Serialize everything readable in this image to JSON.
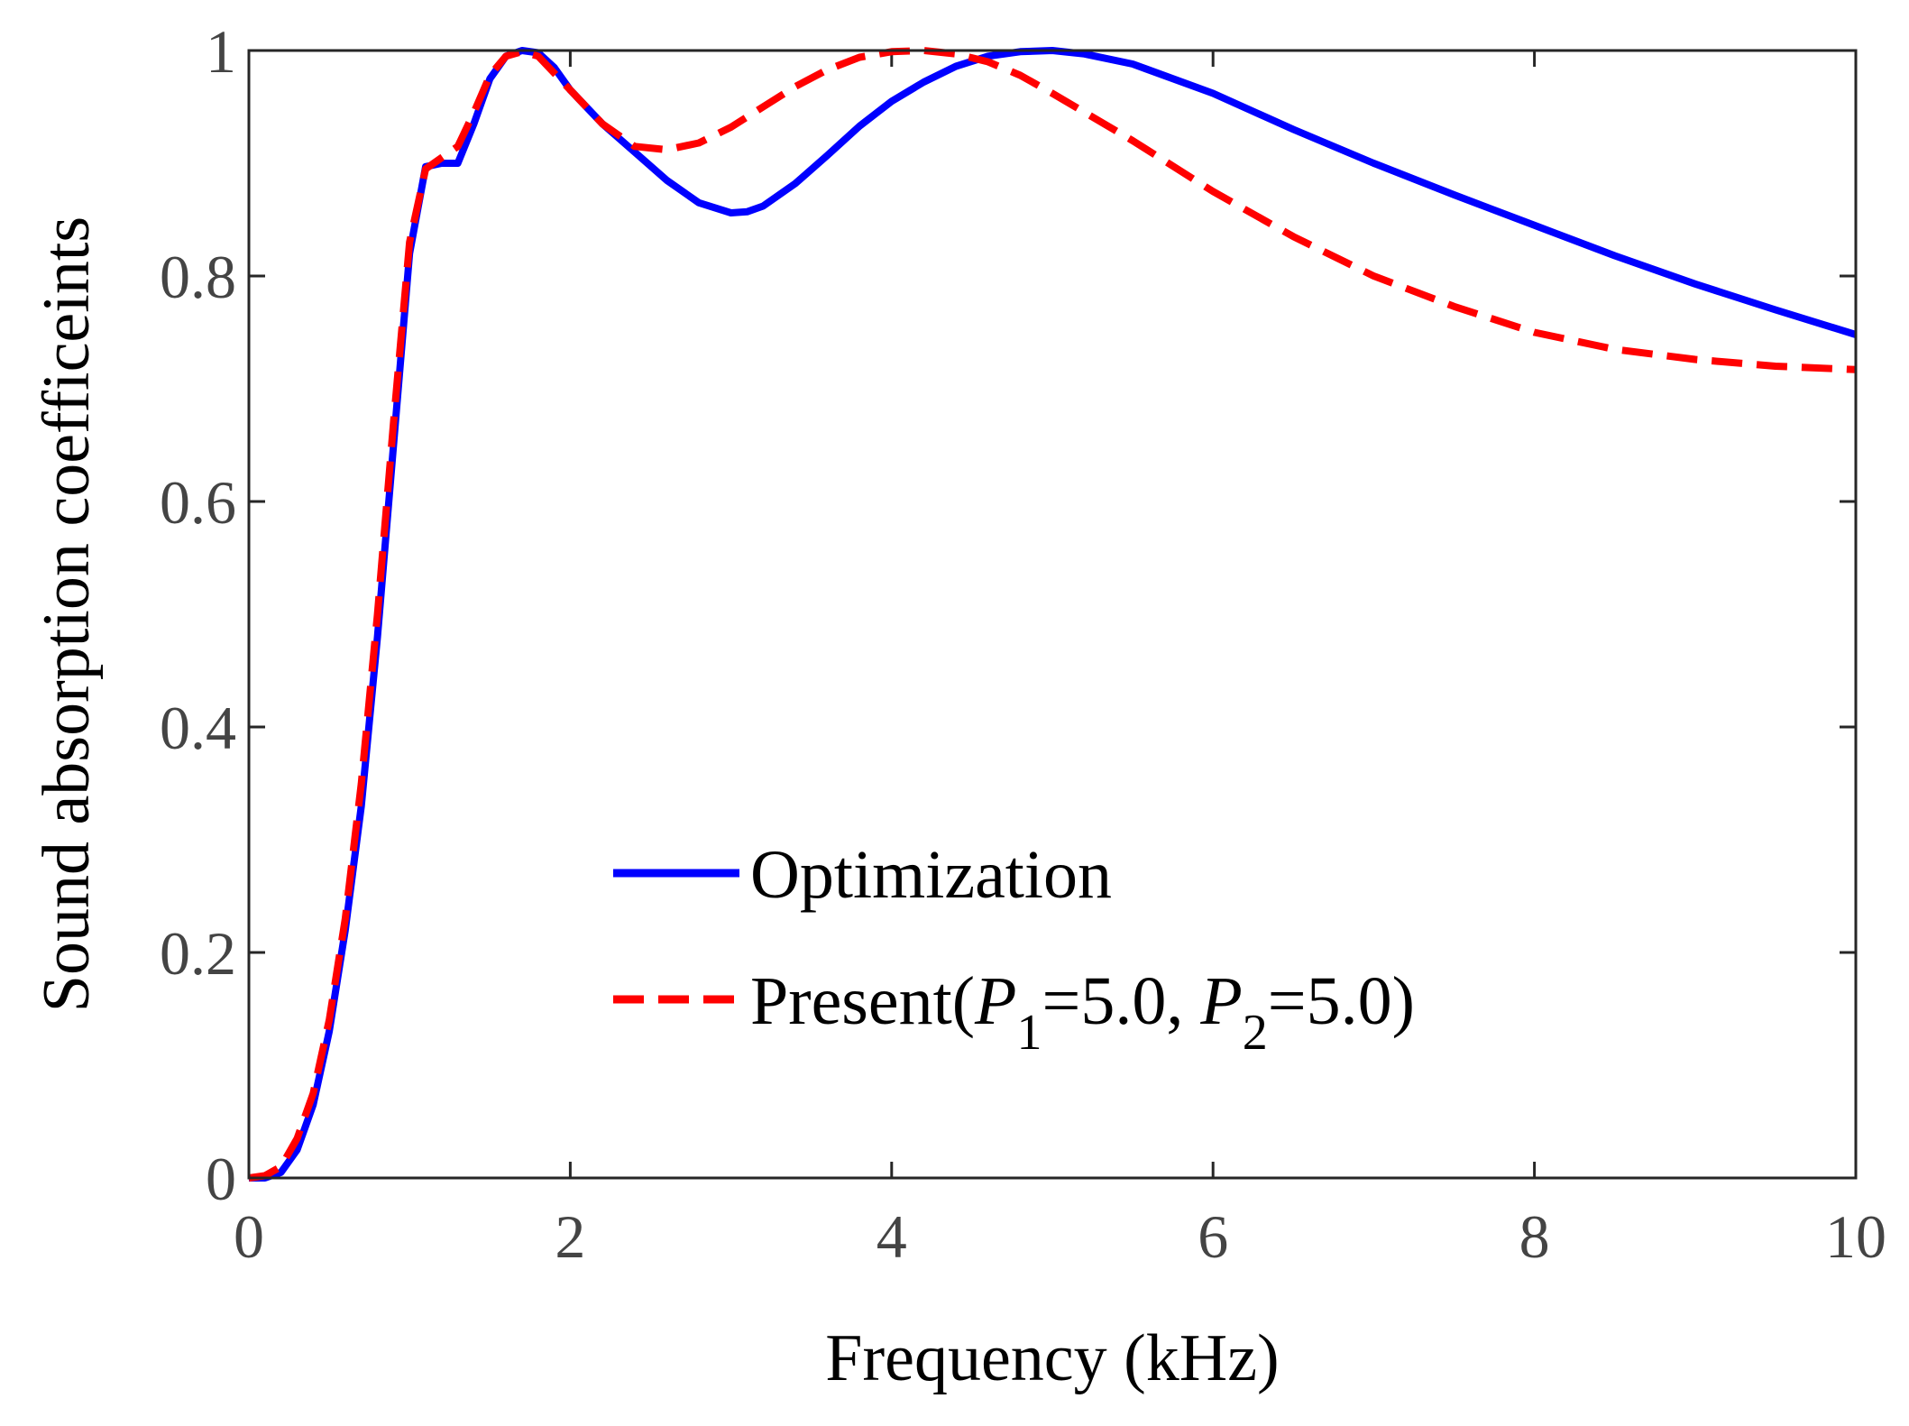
{
  "chart_data": {
    "type": "line",
    "title": "",
    "xlabel": "Frequency (kHz)",
    "ylabel": "Sound absorption coefficeints",
    "xlim": [
      0,
      10
    ],
    "ylim": [
      0,
      1
    ],
    "xticks": [
      "0",
      "2",
      "4",
      "6",
      "8",
      "10"
    ],
    "yticks": [
      "0",
      "0.2",
      "0.4",
      "0.6",
      "0.8",
      "1"
    ],
    "grid": false,
    "legend_position": "lower-center",
    "series": [
      {
        "name": "Optimization",
        "legend_label": "Optimization",
        "color": "#0000ff",
        "style": "solid",
        "x": [
          0,
          0.1,
          0.2,
          0.3,
          0.4,
          0.5,
          0.6,
          0.7,
          0.8,
          0.9,
          1.0,
          1.1,
          1.2,
          1.3,
          1.4,
          1.5,
          1.6,
          1.7,
          1.8,
          1.9,
          2.0,
          2.2,
          2.4,
          2.6,
          2.8,
          3.0,
          3.1,
          3.2,
          3.4,
          3.6,
          3.8,
          4.0,
          4.2,
          4.4,
          4.6,
          4.8,
          5.0,
          5.2,
          5.5,
          6.0,
          6.5,
          7.0,
          7.5,
          8.0,
          8.5,
          9.0,
          9.5,
          10.0
        ],
        "values": [
          0.0,
          0.0,
          0.005,
          0.025,
          0.065,
          0.13,
          0.22,
          0.33,
          0.48,
          0.65,
          0.82,
          0.897,
          0.9,
          0.9,
          0.935,
          0.975,
          0.995,
          1.0,
          0.998,
          0.985,
          0.965,
          0.935,
          0.91,
          0.885,
          0.865,
          0.856,
          0.857,
          0.862,
          0.882,
          0.907,
          0.933,
          0.955,
          0.972,
          0.986,
          0.995,
          0.999,
          1.0,
          0.997,
          0.988,
          0.962,
          0.93,
          0.9,
          0.872,
          0.845,
          0.818,
          0.793,
          0.77,
          0.748
        ]
      },
      {
        "name": "Present",
        "legend_label": "Present(",
        "legend_p1_symbol": "P",
        "legend_p1_sub": "1",
        "legend_p1_value": "=5.0, ",
        "legend_p2_symbol": "P",
        "legend_p2_sub": "2",
        "legend_p2_value": "=5.0)",
        "color": "#ff0000",
        "style": "dashed",
        "x": [
          0,
          0.1,
          0.2,
          0.3,
          0.4,
          0.5,
          0.6,
          0.7,
          0.8,
          0.9,
          1.0,
          1.1,
          1.2,
          1.3,
          1.4,
          1.5,
          1.6,
          1.7,
          1.8,
          1.9,
          2.0,
          2.2,
          2.4,
          2.6,
          2.8,
          3.0,
          3.2,
          3.4,
          3.6,
          3.8,
          4.0,
          4.2,
          4.4,
          4.6,
          4.8,
          5.0,
          5.5,
          6.0,
          6.5,
          7.0,
          7.5,
          8.0,
          8.5,
          9.0,
          9.5,
          10.0
        ],
        "values": [
          0.0,
          0.002,
          0.01,
          0.035,
          0.075,
          0.14,
          0.23,
          0.35,
          0.5,
          0.67,
          0.83,
          0.895,
          0.905,
          0.915,
          0.945,
          0.978,
          0.995,
          0.999,
          0.995,
          0.98,
          0.965,
          0.935,
          0.915,
          0.912,
          0.918,
          0.932,
          0.95,
          0.968,
          0.983,
          0.994,
          0.999,
          1.0,
          0.997,
          0.99,
          0.978,
          0.962,
          0.92,
          0.875,
          0.835,
          0.8,
          0.773,
          0.75,
          0.735,
          0.726,
          0.72,
          0.717
        ]
      }
    ]
  }
}
